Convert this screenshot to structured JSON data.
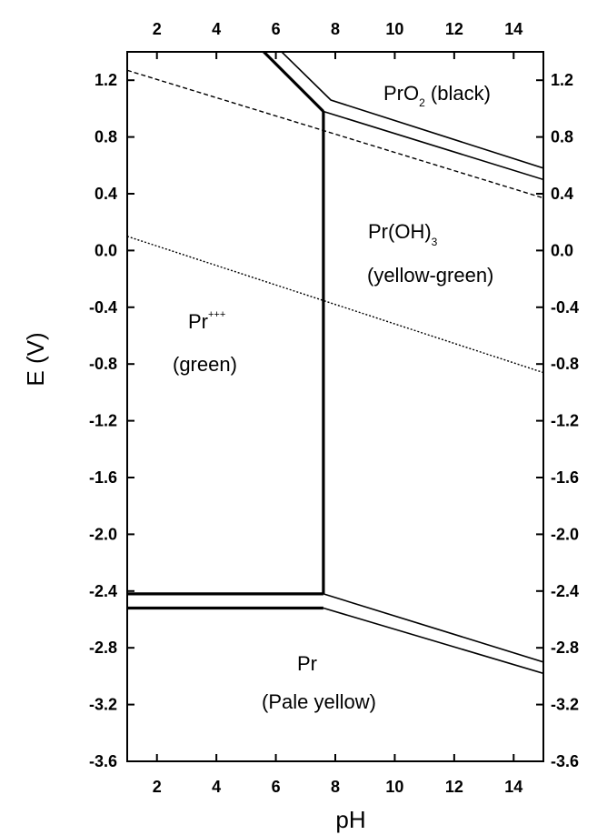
{
  "chart_data": {
    "type": "line",
    "title": "",
    "xlabel": "pH",
    "ylabel": "E (V)",
    "xlim": [
      1,
      15
    ],
    "ylim": [
      -3.6,
      1.4
    ],
    "x_ticks": [
      "2",
      "4",
      "6",
      "8",
      "10",
      "12",
      "14"
    ],
    "y_ticks": [
      "1.2",
      "0.8",
      "0.4",
      "0.0",
      "-0.4",
      "-0.8",
      "-1.2",
      "-1.6",
      "-2.0",
      "-2.4",
      "-2.8",
      "-3.2",
      "-3.6"
    ],
    "grid": false,
    "series": [
      {
        "style": "solid-thick",
        "x": [
          7.6,
          7.6
        ],
        "y": [
          -2.42,
          0.98
        ]
      },
      {
        "style": "solid-thick",
        "x": [
          1,
          7.6
        ],
        "y": [
          -2.42,
          -2.42
        ]
      },
      {
        "style": "solid-thick",
        "x": [
          1,
          7.6
        ],
        "y": [
          -2.52,
          -2.52
        ]
      },
      {
        "style": "solid-thick",
        "x": [
          5.5,
          7.6
        ],
        "y": [
          1.42,
          0.98
        ]
      },
      {
        "style": "solid",
        "x": [
          6.1,
          7.85,
          15
        ],
        "y": [
          1.42,
          1.06,
          0.58
        ]
      },
      {
        "style": "solid",
        "x": [
          7.6,
          15
        ],
        "y": [
          0.98,
          0.5
        ]
      },
      {
        "style": "solid",
        "x": [
          7.6,
          15
        ],
        "y": [
          -2.42,
          -2.9
        ]
      },
      {
        "style": "solid",
        "x": [
          7.6,
          15
        ],
        "y": [
          -2.52,
          -2.98
        ]
      },
      {
        "style": "dashed",
        "x": [
          1,
          15
        ],
        "y": [
          1.27,
          0.37
        ]
      },
      {
        "style": "dotted",
        "x": [
          1,
          15
        ],
        "y": [
          0.1,
          -0.86
        ]
      }
    ],
    "regions": {
      "pro2": {
        "name": "PrO",
        "sub": "2",
        "desc": " (black)"
      },
      "proh3": {
        "name": "Pr(OH)",
        "sub": "3",
        "desc": "(yellow-green)"
      },
      "pr3": {
        "name": "Pr",
        "sup": "+++",
        "desc": "(green)"
      },
      "pr": {
        "name": "Pr",
        "desc": "(Pale yellow)"
      }
    }
  }
}
